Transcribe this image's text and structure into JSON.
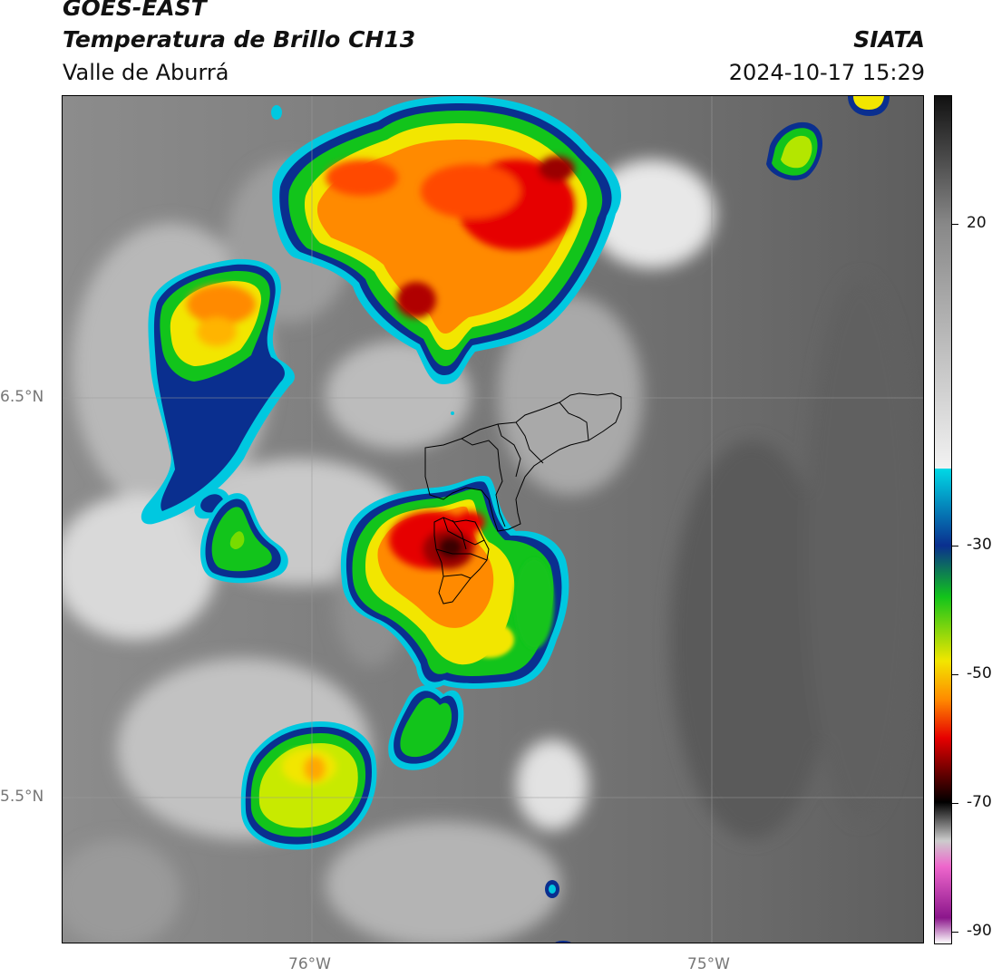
{
  "header": {
    "satellite": "GOES-EAST",
    "product": "Temperatura de Brillo CH13",
    "region": "Valle de Aburrá",
    "agency": "SIATA",
    "timestamp": "2024-10-17 15:29"
  },
  "axes": {
    "lat_labels": [
      "6.5°N",
      "5.5°N"
    ],
    "lon_labels": [
      "76°W",
      "75°W"
    ]
  },
  "colorbar": {
    "ticks": [
      "20",
      "-30",
      "-50",
      "-70",
      "-90"
    ],
    "tick_values": [
      20,
      -30,
      -50,
      -70,
      -90
    ],
    "range": [
      -92,
      40
    ],
    "colors": {
      "warm_gray_dark": "#111111",
      "warm_gray_mid": "#888888",
      "warm_gray_light": "#f2f2f2",
      "cyan": "#00d9e6",
      "blue": "#0a2f8f",
      "green": "#12c41b",
      "yellow": "#f2e600",
      "orange": "#ff8a00",
      "red": "#e60000",
      "dark_red": "#5a0000",
      "black": "#000000",
      "pink": "#ee66cc",
      "purple": "#8b168b"
    }
  }
}
